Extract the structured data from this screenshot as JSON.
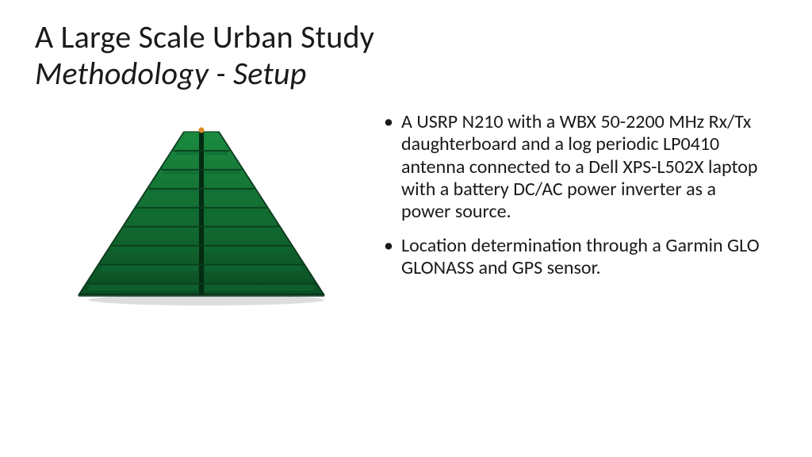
{
  "title": {
    "line1": "A Large Scale Urban Study",
    "line2": "Methodology - Setup",
    "fontSizePt": 30,
    "color": "#1a1a1a"
  },
  "bullets": [
    "A USRP N210 with a WBX 50-2200 MHz Rx/Tx daughterboard and a log periodic LP0410 antenna connected to a Dell XPS-L502X laptop with a battery DC/AC power inverter as a power source.",
    "Location determination through a Garmin GLO GLONASS and GPS sensor."
  ],
  "bulletStyle": {
    "fontSizePt": 18,
    "lineHeight": 1.18,
    "marker": "•",
    "color": "#1a1a1a"
  },
  "figure": {
    "type": "antenna-illustration",
    "description": "Green trapezoidal log-periodic PCB antenna (LP0410)",
    "shape": "isoceles-trapezoid",
    "widthTopPx": 44,
    "widthBottomPx": 310,
    "heightPx": 206,
    "fillTop": "#1a8a3f",
    "fillBottom": "#0b4f24",
    "centerSpine": "#032b12",
    "rungColor": "#0f6a33",
    "rungLine": "#0a3e1d",
    "edgeDark": "#062f16",
    "shadow": "#9f9f9f",
    "rungs": 8,
    "tipDot": "#d98a2b"
  },
  "slide": {
    "widthPx": 1024,
    "heightPx": 576,
    "background": "#ffffff"
  }
}
